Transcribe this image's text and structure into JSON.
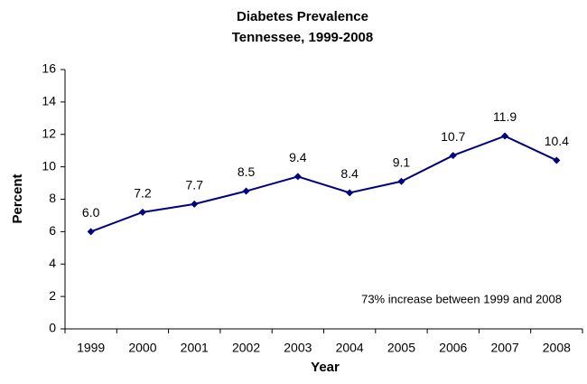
{
  "chart_data": {
    "type": "line",
    "title": "Diabetes Prevalence",
    "subtitle": "Tennessee, 1999-2008",
    "x_label": "Year",
    "y_label": "Percent",
    "annotation": "73% increase between 1999 and 2008",
    "categories": [
      "1999",
      "2000",
      "2001",
      "2002",
      "2003",
      "2004",
      "2005",
      "2006",
      "2007",
      "2008"
    ],
    "values": [
      6.0,
      7.2,
      7.7,
      8.5,
      9.4,
      8.4,
      9.1,
      10.7,
      11.9,
      10.4
    ],
    "value_labels": [
      "6.0",
      "7.2",
      "7.7",
      "8.5",
      "9.4",
      "8.4",
      "9.1",
      "10.7",
      "11.9",
      "10.4"
    ],
    "color": "#000080",
    "ylim": [
      0,
      16
    ],
    "yticks": [
      0,
      2,
      4,
      6,
      8,
      10,
      12,
      14,
      16
    ],
    "grid": false
  }
}
